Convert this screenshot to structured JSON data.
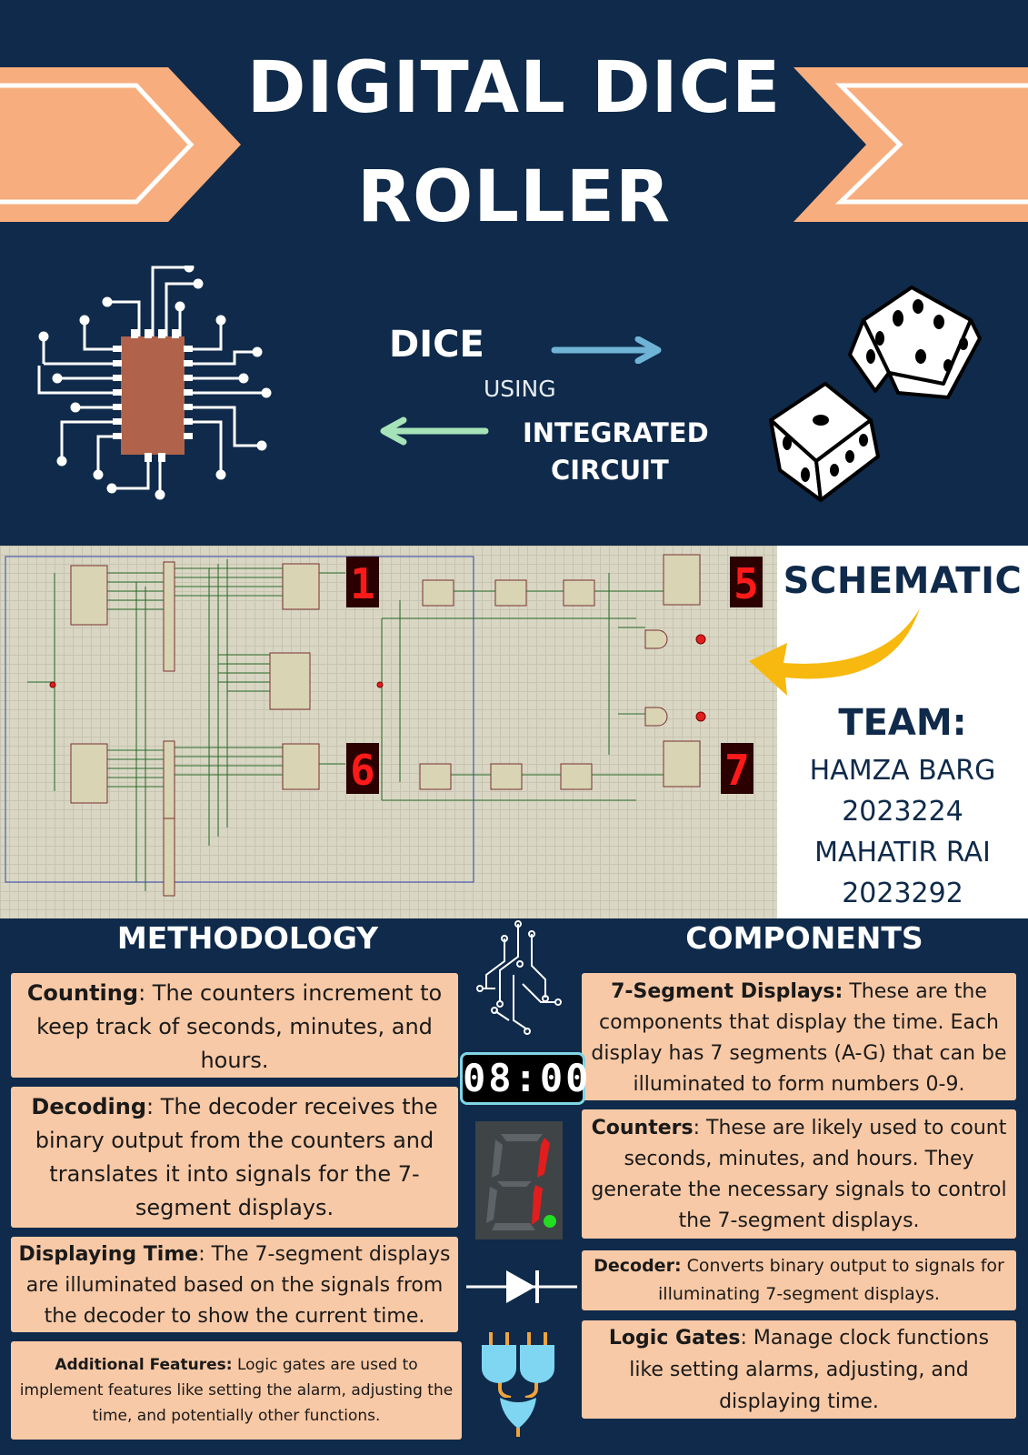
{
  "header": {
    "title_line1": "DIGITAL DICE",
    "title_line2": "ROLLER",
    "word_dice": "DICE",
    "word_using": "USING",
    "word_integrated": "INTEGRATED",
    "word_circuit": "CIRCUIT"
  },
  "schematic_panel": {
    "heading": "SCHEMATIC",
    "display_digits": [
      "1",
      "5",
      "6",
      "7"
    ]
  },
  "team": {
    "heading": "TEAM:",
    "members": [
      {
        "name": "HAMZA BARG",
        "id": "2023224"
      },
      {
        "name": "MAHATIR RAI",
        "id": "2023292"
      }
    ]
  },
  "methodology": {
    "heading": "METHODOLOGY",
    "items": [
      {
        "term": "Counting",
        "text": ": The counters increment to keep track of seconds, minutes, and hours."
      },
      {
        "term": "Decoding",
        "text": ": The decoder receives the binary output from the counters and translates it into signals for the 7-segment displays."
      },
      {
        "term": "Displaying Time",
        "text": ": The 7-segment displays are illuminated based on the signals from the decoder to show the current time."
      },
      {
        "term": "Additional Features:",
        "text": " Logic gates are used to implement features like setting the alarm, adjusting the time, and potentially other functions."
      }
    ]
  },
  "center_icons": {
    "clock_readout": "08:00"
  },
  "components": {
    "heading": "COMPONENTS",
    "items": [
      {
        "term": "7-Segment Displays:",
        "text": " These are the components that display the time. Each display has 7 segments (A-G) that can be illuminated to form numbers 0-9."
      },
      {
        "term": "Counters",
        "text": ": These are likely used to count seconds, minutes, and hours. They generate the necessary signals to control the 7-segment displays."
      },
      {
        "term": "Decoder:",
        "text": " Converts binary output to signals for illuminating 7-segment displays."
      },
      {
        "term": "Logic Gates",
        "text": ": Manage clock functions like setting alarms, adjusting, and displaying time."
      }
    ]
  },
  "colors": {
    "navy": "#0f2a4a",
    "peach": "#f7ad7d",
    "card": "#f8c9a6",
    "arrow_blue": "#6fb4d6",
    "arrow_green": "#a6e3b8",
    "arrow_yellow": "#f7b90f",
    "segment_red": "#e11d1d"
  }
}
